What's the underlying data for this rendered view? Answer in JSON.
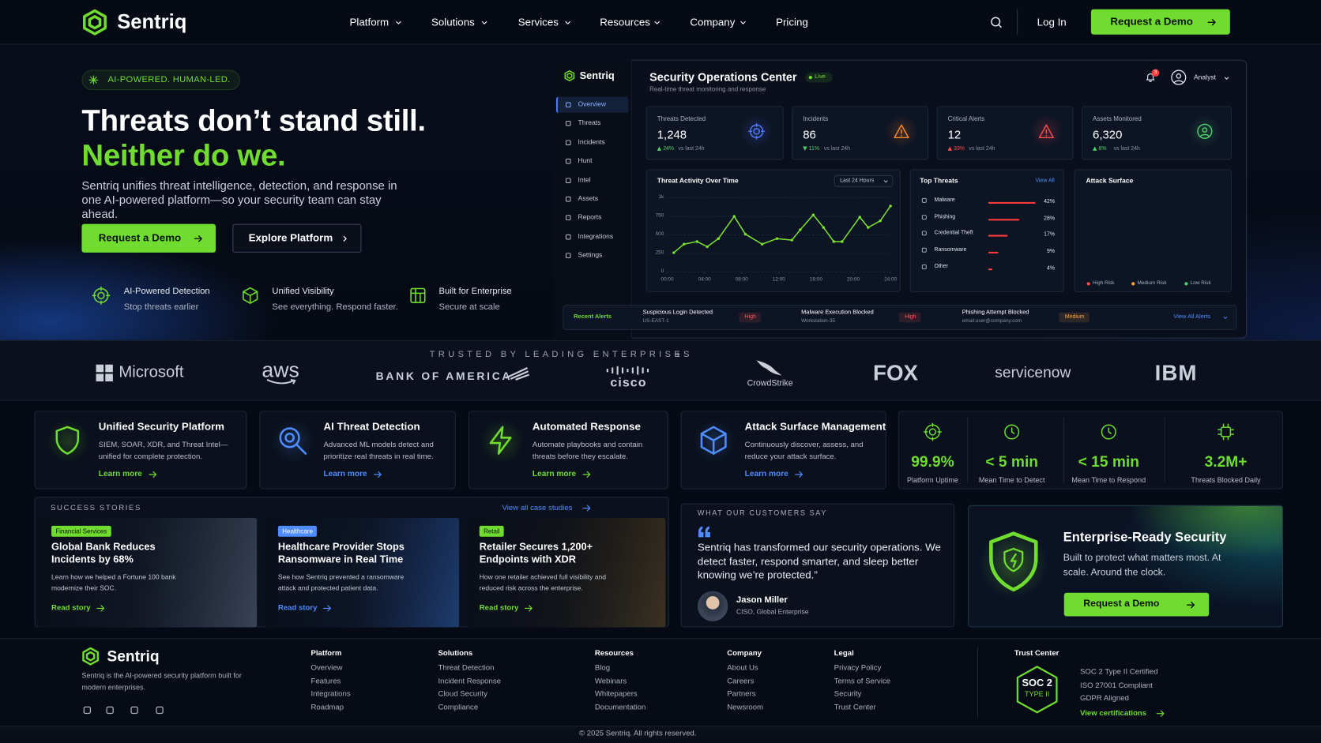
{
  "nav": {
    "brand": "Sentriq",
    "links": [
      "Platform",
      "Solutions",
      "Services",
      "Resources",
      "Company",
      "Pricing"
    ],
    "login": "Log In",
    "cta": "Request a Demo"
  },
  "hero": {
    "badge": "AI-POWERED. HUMAN-LED.",
    "title_line1": "Threats don’t stand still.",
    "title_line2": "Neither do we.",
    "body": "Sentriq unifies threat intelligence, detection, and response in one AI-powered platform—so your security team can stay ahead.",
    "primary_cta": "Request a Demo",
    "secondary_cta": "Explore Platform",
    "features": [
      {
        "title": "AI-Powered Detection",
        "text": "Stop threats earlier"
      },
      {
        "title": "Unified Visibility",
        "text": "See everything. Respond faster."
      },
      {
        "title": "Built for Enterprise",
        "text": "Secure at scale"
      }
    ]
  },
  "dashboard": {
    "brand": "Sentriq",
    "sidebar": [
      "Overview",
      "Threats",
      "Incidents",
      "Hunt",
      "Intel",
      "Assets",
      "Reports",
      "Integrations",
      "Settings"
    ],
    "title": "Security Operations Center",
    "live": "Live",
    "subtitle": "Real-time threat monitoring and response",
    "notification_count": "3",
    "user": "Analyst",
    "stats": [
      {
        "label": "Threats Detected",
        "value": "1,248",
        "change": "24%",
        "note": "vs last 24h",
        "change_color": "#4fd16a",
        "icon_color": "#4f7cff"
      },
      {
        "label": "Incidents",
        "value": "86",
        "change": "11%",
        "note": "vs last 24h",
        "change_color": "#4fd16a",
        "icon_color": "#ff8a2a"
      },
      {
        "label": "Critical Alerts",
        "value": "12",
        "change": "33%",
        "note": "vs last 24h",
        "change_color": "#ff4d4d",
        "icon_color": "#ff4d4d"
      },
      {
        "label": "Assets Monitored",
        "value": "6,320",
        "change": "8%",
        "note": "vs last 24h",
        "change_color": "#4fd16a",
        "icon_color": "#4fd16a"
      }
    ],
    "activity": {
      "title": "Threat Activity Over Time",
      "range": "Last 24 Hours",
      "color": "#7be52e",
      "x": [
        0.7,
        1.8,
        3.2,
        4.3,
        5.5,
        7.2,
        8.4,
        10.2,
        11.8,
        13.4,
        14.3,
        15.7,
        16.8,
        17.9,
        18.8,
        20.7,
        21.6,
        22.9,
        24
      ],
      "values": [
        260,
        375,
        410,
        340,
        450,
        750,
        510,
        375,
        450,
        430,
        570,
        770,
        600,
        410,
        410,
        740,
        600,
        690,
        890
      ],
      "xlim": [
        0,
        24
      ],
      "xticks": [
        {
          "value": 0,
          "label": "00:00"
        },
        {
          "value": 4,
          "label": "04:00"
        },
        {
          "value": 8,
          "label": "08:00"
        },
        {
          "value": 12,
          "label": "12:00"
        },
        {
          "value": 16,
          "label": "16:00"
        },
        {
          "value": 20,
          "label": "20:00"
        },
        {
          "value": 24,
          "label": "24:00"
        }
      ],
      "ylim": [
        0,
        1000
      ],
      "yticks": [
        0,
        250,
        500,
        750,
        {
          "value": 1000,
          "label": "1k"
        }
      ]
    },
    "top_threats": {
      "title": "Top Threats",
      "link": "View All",
      "color": "#ff3b3b",
      "categories": [
        "Malware",
        "Phishing",
        "Credential Theft",
        "Ransomware",
        "Other"
      ],
      "values": [
        42,
        28,
        17,
        9,
        4
      ],
      "value_labels": [
        "42%",
        "28%",
        "17%",
        "9%",
        "4%"
      ]
    },
    "attack_surface": {
      "title": "Attack Surface",
      "legend": [
        {
          "name": "High Risk",
          "color": "#ff4d4d"
        },
        {
          "name": "Medium Risk",
          "color": "#ffa53a"
        },
        {
          "name": "Low Risk",
          "color": "#4fd16a"
        }
      ]
    },
    "alerts": {
      "title": "Recent Alerts",
      "link": "View All Alerts",
      "items": [
        {
          "title": "Suspicious Login Detected",
          "source": "US-EAST-1",
          "severity": "High",
          "color": "#ff5a5a"
        },
        {
          "title": "Malware Execution Blocked",
          "source": "Workstation-35",
          "severity": "High",
          "color": "#ff5a5a"
        },
        {
          "title": "Phishing Attempt Blocked",
          "source": "email.user@company.com",
          "severity": "Medium",
          "color": "#ffa53a"
        }
      ]
    }
  },
  "trusted": {
    "title": "TRUSTED BY LEADING ENTERPRISES",
    "logos": [
      "Microsoft",
      "aws",
      "BANK OF AMERICA",
      "cisco",
      "CrowdStrike",
      "FOX",
      "servicenow",
      "IBM"
    ]
  },
  "capabilities": [
    {
      "title": "Unified Security Platform",
      "text": "SIEM, SOAR, XDR, and Threat Intel—unified for complete protection.",
      "link": "Learn more",
      "color": "#6fdc2f"
    },
    {
      "title": "AI Threat Detection",
      "text": "Advanced ML models detect and prioritize real threats in real time.",
      "link": "Learn more",
      "color": "#4f8cff"
    },
    {
      "title": "Automated Response",
      "text": "Automate playbooks and contain threats before they escalate.",
      "link": "Learn more",
      "color": "#6fdc2f"
    },
    {
      "title": "Attack Surface Management",
      "text": "Continuously discover, assess, and reduce your attack surface.",
      "link": "Learn more",
      "color": "#4f8cff"
    }
  ],
  "metrics": [
    {
      "value": "99.9%",
      "label": "Platform Uptime"
    },
    {
      "value": "< 5 min",
      "label": "Mean Time to Detect"
    },
    {
      "value": "< 15 min",
      "label": "Mean Time to Respond"
    },
    {
      "value": "3.2M+",
      "label": "Threats Blocked Daily"
    }
  ],
  "stories": {
    "title": "SUCCESS STORIES",
    "link": "View all case studies",
    "items": [
      {
        "tag": "Financial Services",
        "title": "Global Bank Reduces Incidents by 68%",
        "text": "Learn how we helped a Fortune 100 bank modernize their SOC.",
        "link": "Read story"
      },
      {
        "tag": "Healthcare",
        "title": "Healthcare Provider Stops Ransomware in Real Time",
        "text": "See how Sentriq prevented a ransomware attack and protected patient data.",
        "link": "Read story"
      },
      {
        "tag": "Retail",
        "title": "Retailer Secures 1,200+ Endpoints with XDR",
        "text": "How one retailer achieved full visibility and reduced risk across the enterprise.",
        "link": "Read story"
      }
    ]
  },
  "testimonial": {
    "title": "WHAT OUR CUSTOMERS SAY",
    "quote": "Sentriq has transformed our security operations. We detect faster, respond smarter, and sleep better knowing we’re protected.”",
    "name": "Jason Miller",
    "role": "CISO, Global Enterprise"
  },
  "enterprise": {
    "title": "Enterprise-Ready Security",
    "text": "Built to protect what matters most. At scale. Around the clock.",
    "cta": "Request a Demo"
  },
  "footer": {
    "brand": "Sentriq",
    "text": "Sentriq is the AI-powered security platform built for modern enterprises.",
    "columns": [
      {
        "title": "Platform",
        "links": [
          "Overview",
          "Features",
          "Integrations",
          "Roadmap"
        ]
      },
      {
        "title": "Solutions",
        "links": [
          "Threat Detection",
          "Incident Response",
          "Cloud Security",
          "Compliance"
        ]
      },
      {
        "title": "Resources",
        "links": [
          "Blog",
          "Webinars",
          "Whitepapers",
          "Documentation"
        ]
      },
      {
        "title": "Company",
        "links": [
          "About Us",
          "Careers",
          "Partners",
          "Newsroom"
        ]
      },
      {
        "title": "Legal",
        "links": [
          "Privacy Policy",
          "Terms of Service",
          "Security",
          "Trust Center"
        ]
      }
    ],
    "trust": {
      "title": "Trust Center",
      "badge_line1": "SOC 2",
      "badge_line2": "TYPE II",
      "items": [
        "SOC 2 Type II Certified",
        "ISO 27001 Compliant",
        "GDPR Aligned"
      ],
      "link": "View certifications"
    },
    "copyright": "© 2025 Sentriq. All rights reserved."
  }
}
